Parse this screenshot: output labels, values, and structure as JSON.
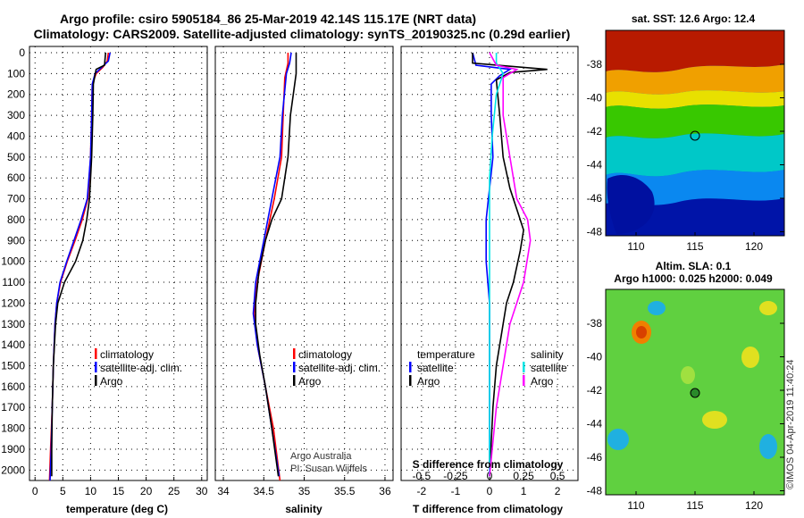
{
  "header": {
    "line1": "Argo profile: csiro 5905184_86 25-Mar-2019 42.14S 115.17E (NRT data)",
    "line2": "Climatology: CARS2009. Satellite-adjusted climatology: synTS_20190325.nc (0.29d earlier)"
  },
  "colors": {
    "climatology": "#ff0000",
    "satellite": "#0000ff",
    "argo": "#000000",
    "sat_temp": "#0000ff",
    "sat_sal": "#00e5e5",
    "argo_sal": "#ff00ff"
  },
  "y_ticks": [
    "0",
    "100",
    "200",
    "300",
    "400",
    "500",
    "600",
    "700",
    "800",
    "900",
    "1000",
    "1100",
    "1200",
    "1300",
    "1400",
    "1500",
    "1600",
    "1700",
    "1800",
    "1900",
    "2000"
  ],
  "panel1": {
    "xlabel": "temperature (deg C)",
    "xticks": [
      "0",
      "5",
      "10",
      "15",
      "20",
      "25",
      "30"
    ],
    "legend": [
      "climatology",
      "satellite-adj. clim.",
      "Argo"
    ]
  },
  "panel2": {
    "xlabel": "salinity",
    "xticks": [
      "34",
      "34.5",
      "35",
      "35.5",
      "36"
    ],
    "legend": [
      "climatology",
      "satellite-adj. clim.",
      "Argo"
    ],
    "credit1": "Argo Australia",
    "credit2": "PI: Susan Wijffels"
  },
  "panel3": {
    "xlabel": "T difference from climatology",
    "xticks": [
      "-2",
      "-1",
      "0",
      "1",
      "2"
    ],
    "s_label": "S difference from climatology",
    "s_ticks": [
      "-0.5",
      "-0.25",
      "0",
      "0.25",
      "0.5"
    ],
    "legend_t_title": "temperature",
    "legend_s_title": "salinity",
    "legend_t": [
      "satellite",
      "Argo"
    ],
    "legend_s": [
      "satellite",
      "Argo"
    ]
  },
  "map1": {
    "title": "sat. SST: 12.6 Argo: 12.4",
    "yticks": [
      "-38",
      "-40",
      "-42",
      "-44",
      "-46",
      "-48"
    ],
    "xticks": [
      "110",
      "115",
      "120"
    ]
  },
  "map2": {
    "title1": "Altim. SLA: 0.1",
    "title2": "Argo h1000: 0.025 h2000: 0.049",
    "yticks": [
      "-38",
      "-40",
      "-42",
      "-44",
      "-46",
      "-48"
    ],
    "xticks": [
      "110",
      "115",
      "120"
    ]
  },
  "stamp": "©IMOS 04-Apr-2019 11:40:24",
  "chart_data": [
    {
      "type": "line",
      "xlabel": "temperature (deg C)",
      "ylabel": "",
      "xlim": [
        -1,
        31
      ],
      "ylim": [
        2050,
        0
      ],
      "series": [
        {
          "name": "climatology",
          "points": [
            [
              13.2,
              0
            ],
            [
              13.0,
              40
            ],
            [
              12.2,
              70
            ],
            [
              11.0,
              100
            ],
            [
              10.3,
              150
            ],
            [
              10.2,
              300
            ],
            [
              10.0,
              500
            ],
            [
              9.5,
              700
            ],
            [
              8.5,
              800
            ],
            [
              7.2,
              900
            ],
            [
              5.8,
              1000
            ],
            [
              4.6,
              1100
            ],
            [
              3.9,
              1200
            ],
            [
              3.6,
              1300
            ],
            [
              3.3,
              1500
            ],
            [
              3.1,
              1700
            ],
            [
              2.8,
              1900
            ],
            [
              2.6,
              2050
            ]
          ]
        },
        {
          "name": "satellite-adj. clim.",
          "points": [
            [
              13.5,
              0
            ],
            [
              13.2,
              40
            ],
            [
              12.0,
              70
            ],
            [
              10.8,
              100
            ],
            [
              10.3,
              150
            ],
            [
              10.2,
              300
            ],
            [
              10.0,
              500
            ],
            [
              9.4,
              700
            ],
            [
              8.3,
              800
            ],
            [
              7.0,
              900
            ],
            [
              5.7,
              1000
            ],
            [
              4.5,
              1100
            ],
            [
              3.9,
              1200
            ],
            [
              3.6,
              1300
            ],
            [
              3.3,
              1500
            ],
            [
              3.1,
              1700
            ],
            [
              2.9,
              1900
            ],
            [
              2.7,
              2050
            ]
          ]
        },
        {
          "name": "Argo",
          "points": [
            [
              12.7,
              0
            ],
            [
              12.5,
              60
            ],
            [
              11.0,
              80
            ],
            [
              10.5,
              150
            ],
            [
              10.4,
              300
            ],
            [
              10.2,
              500
            ],
            [
              9.8,
              700
            ],
            [
              9.3,
              800
            ],
            [
              8.6,
              900
            ],
            [
              7.3,
              1000
            ],
            [
              5.3,
              1100
            ],
            [
              4.1,
              1200
            ],
            [
              3.7,
              1300
            ],
            [
              3.3,
              1500
            ],
            [
              3.1,
              1700
            ],
            [
              3.0,
              1900
            ],
            [
              3.0,
              2030
            ]
          ]
        }
      ]
    },
    {
      "type": "line",
      "xlabel": "salinity",
      "ylabel": "",
      "xlim": [
        33.9,
        36.1
      ],
      "ylim": [
        2050,
        0
      ],
      "series": [
        {
          "name": "climatology",
          "points": [
            [
              34.8,
              0
            ],
            [
              34.8,
              50
            ],
            [
              34.76,
              120
            ],
            [
              34.74,
              300
            ],
            [
              34.72,
              500
            ],
            [
              34.63,
              700
            ],
            [
              34.52,
              900
            ],
            [
              34.42,
              1100
            ],
            [
              34.38,
              1250
            ],
            [
              34.42,
              1400
            ],
            [
              34.52,
              1600
            ],
            [
              34.62,
              1800
            ],
            [
              34.7,
              2050
            ]
          ]
        },
        {
          "name": "satellite-adj. clim.",
          "points": [
            [
              34.84,
              0
            ],
            [
              34.82,
              50
            ],
            [
              34.78,
              100
            ],
            [
              34.73,
              300
            ],
            [
              34.7,
              500
            ],
            [
              34.6,
              700
            ],
            [
              34.5,
              900
            ],
            [
              34.4,
              1100
            ],
            [
              34.37,
              1250
            ],
            [
              34.42,
              1400
            ],
            [
              34.52,
              1600
            ],
            [
              34.6,
              1800
            ],
            [
              34.69,
              2030
            ]
          ]
        },
        {
          "name": "Argo",
          "points": [
            [
              34.9,
              0
            ],
            [
              34.9,
              100
            ],
            [
              34.83,
              300
            ],
            [
              34.8,
              500
            ],
            [
              34.72,
              700
            ],
            [
              34.6,
              800
            ],
            [
              34.52,
              900
            ],
            [
              34.44,
              1050
            ],
            [
              34.4,
              1200
            ],
            [
              34.4,
              1300
            ],
            [
              34.45,
              1450
            ],
            [
              34.52,
              1600
            ],
            [
              34.6,
              1800
            ],
            [
              34.68,
              2030
            ]
          ]
        }
      ]
    },
    {
      "type": "line",
      "xlabel": "T difference from climatology",
      "ylabel": "",
      "xlim": [
        -2.6,
        2.6
      ],
      "ylim": [
        2050,
        0
      ],
      "series": [
        {
          "name": "temperature satellite",
          "points": [
            [
              -0.5,
              0
            ],
            [
              -0.4,
              60
            ],
            [
              0.6,
              80
            ],
            [
              0.3,
              110
            ],
            [
              0.05,
              150
            ],
            [
              0.05,
              300
            ],
            [
              0.1,
              500
            ],
            [
              0.0,
              650
            ],
            [
              -0.1,
              800
            ],
            [
              -0.1,
              1000
            ],
            [
              0.0,
              1200
            ],
            [
              0.0,
              1500
            ],
            [
              0.0,
              2030
            ]
          ]
        },
        {
          "name": "temperature Argo",
          "points": [
            [
              -0.5,
              0
            ],
            [
              -0.5,
              50
            ],
            [
              1.7,
              80
            ],
            [
              0.6,
              95
            ],
            [
              0.2,
              130
            ],
            [
              0.3,
              300
            ],
            [
              0.4,
              500
            ],
            [
              0.6,
              650
            ],
            [
              0.8,
              750
            ],
            [
              1.0,
              850
            ],
            [
              0.9,
              950
            ],
            [
              0.7,
              1100
            ],
            [
              0.5,
              1200
            ],
            [
              0.4,
              1300
            ],
            [
              0.2,
              1500
            ],
            [
              0.1,
              1700
            ],
            [
              0.0,
              2030
            ]
          ]
        }
      ]
    },
    {
      "type": "line",
      "xlabel": "S difference from climatology",
      "ylabel": "",
      "xlim": [
        -0.65,
        0.65
      ],
      "ylim": [
        2050,
        0
      ],
      "series": [
        {
          "name": "salinity satellite",
          "points": [
            [
              0.05,
              0
            ],
            [
              0.05,
              50
            ],
            [
              0.1,
              100
            ],
            [
              0.05,
              200
            ],
            [
              0.02,
              400
            ],
            [
              0.0,
              600
            ],
            [
              0.0,
              800
            ],
            [
              0.0,
              1000
            ],
            [
              0.0,
              1500
            ],
            [
              0.0,
              2030
            ]
          ]
        },
        {
          "name": "salinity Argo",
          "points": [
            [
              0.0,
              0
            ],
            [
              0.05,
              60
            ],
            [
              0.2,
              80
            ],
            [
              0.1,
              120
            ],
            [
              0.1,
              300
            ],
            [
              0.15,
              500
            ],
            [
              0.2,
              700
            ],
            [
              0.28,
              800
            ],
            [
              0.3,
              900
            ],
            [
              0.25,
              1100
            ],
            [
              0.15,
              1300
            ],
            [
              0.1,
              1500
            ],
            [
              0.05,
              1700
            ],
            [
              0.0,
              2030
            ]
          ]
        }
      ]
    }
  ]
}
